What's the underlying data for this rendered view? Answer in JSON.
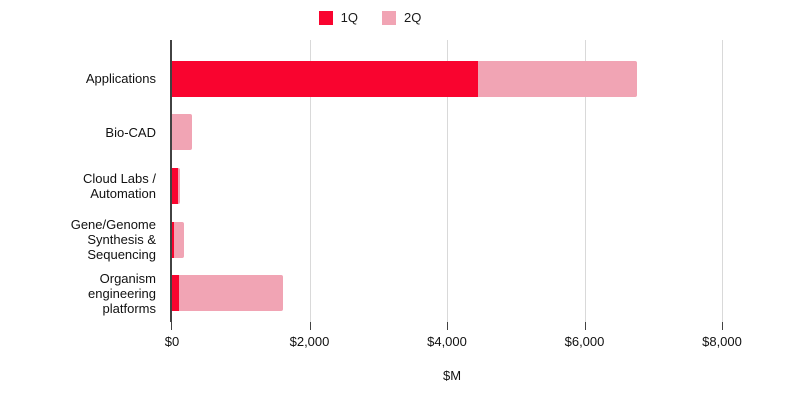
{
  "chart_data": {
    "type": "bar",
    "orientation": "horizontal",
    "stacked": true,
    "title": "",
    "xlabel": "$M",
    "ylabel": "",
    "categories": [
      "Applications",
      "Bio-CAD",
      "Cloud Labs / Automation",
      "Gene/Genome Synthesis & Sequencing",
      "Organism engineering platforms"
    ],
    "series": [
      {
        "name": "1Q",
        "color": "#F9042F",
        "values": [
          4450,
          0,
          80,
          30,
          100
        ]
      },
      {
        "name": "2Q",
        "color": "#F1A4B4",
        "values": [
          2310,
          290,
          40,
          140,
          1510
        ]
      }
    ],
    "x_ticks": [
      "$0",
      "$2,000",
      "$4,000",
      "$6,000",
      "$8,000"
    ],
    "x_tick_values": [
      0,
      2000,
      4000,
      6000,
      8000
    ],
    "xlim": [
      0,
      8000
    ],
    "legend_position": "top",
    "grid": true,
    "colors": {
      "axis_line": "#424242",
      "gridline": "#d9d9d9",
      "background": "#ffffff",
      "text": "#111111"
    }
  }
}
